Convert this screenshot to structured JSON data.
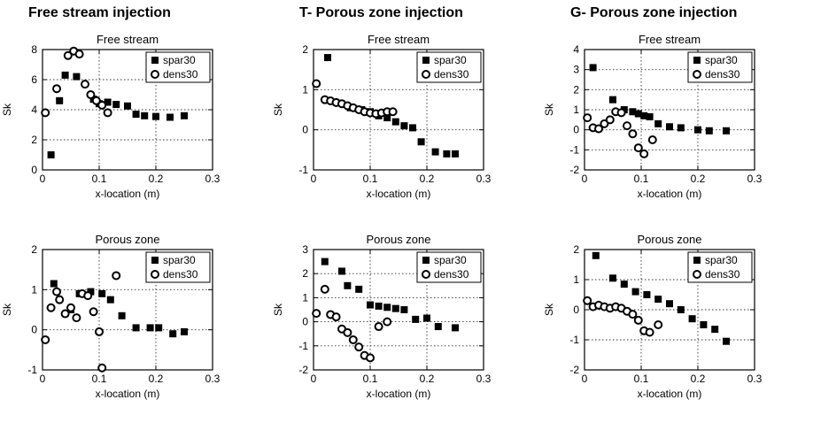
{
  "figure": {
    "columns": [
      {
        "title": "Free stream injection"
      },
      {
        "title": "T- Porous zone injection"
      },
      {
        "title": "G- Porous zone injection"
      }
    ]
  },
  "chart_data": [
    {
      "type": "scatter",
      "title": "Free stream",
      "xlabel": "x-location (m)",
      "ylabel": "Sk",
      "xlim": [
        0,
        0.3
      ],
      "xticks": [
        0,
        0.1,
        0.2,
        0.3
      ],
      "ylim": [
        0,
        8
      ],
      "yticks": [
        0,
        2,
        4,
        6,
        8
      ],
      "grid": true,
      "legend_position": "top-right",
      "legend": [
        "spar30",
        "dens30"
      ],
      "series": [
        {
          "name": "spar30",
          "marker": "filled-square",
          "points": [
            [
              0.015,
              1.0
            ],
            [
              0.03,
              4.6
            ],
            [
              0.04,
              6.3
            ],
            [
              0.06,
              6.2
            ],
            [
              0.09,
              4.7
            ],
            [
              0.1,
              4.4
            ],
            [
              0.115,
              4.5
            ],
            [
              0.13,
              4.35
            ],
            [
              0.15,
              4.25
            ],
            [
              0.165,
              3.7
            ],
            [
              0.18,
              3.6
            ],
            [
              0.2,
              3.55
            ],
            [
              0.225,
              3.5
            ],
            [
              0.25,
              3.6
            ]
          ]
        },
        {
          "name": "dens30",
          "marker": "open-circle",
          "points": [
            [
              0.005,
              3.8
            ],
            [
              0.025,
              5.4
            ],
            [
              0.045,
              7.6
            ],
            [
              0.055,
              7.9
            ],
            [
              0.065,
              7.7
            ],
            [
              0.075,
              5.7
            ],
            [
              0.085,
              5.0
            ],
            [
              0.095,
              4.6
            ],
            [
              0.105,
              4.3
            ],
            [
              0.115,
              3.8
            ]
          ]
        }
      ]
    },
    {
      "type": "scatter",
      "title": "Porous zone",
      "xlabel": "x-location (m)",
      "ylabel": "Sk",
      "xlim": [
        0,
        0.3
      ],
      "xticks": [
        0,
        0.1,
        0.2,
        0.3
      ],
      "ylim": [
        -1,
        2
      ],
      "yticks": [
        -1,
        0,
        1,
        2
      ],
      "grid": true,
      "legend_position": "top-right",
      "legend": [
        "spar30",
        "dens30"
      ],
      "series": [
        {
          "name": "spar30",
          "marker": "filled-square",
          "points": [
            [
              0.02,
              1.15
            ],
            [
              0.05,
              0.5
            ],
            [
              0.065,
              0.9
            ],
            [
              0.085,
              0.95
            ],
            [
              0.105,
              0.9
            ],
            [
              0.12,
              0.75
            ],
            [
              0.14,
              0.35
            ],
            [
              0.165,
              0.05
            ],
            [
              0.19,
              0.05
            ],
            [
              0.205,
              0.05
            ],
            [
              0.23,
              -0.1
            ],
            [
              0.25,
              -0.05
            ]
          ]
        },
        {
          "name": "dens30",
          "marker": "open-circle",
          "points": [
            [
              0.005,
              -0.25
            ],
            [
              0.015,
              0.55
            ],
            [
              0.025,
              0.95
            ],
            [
              0.03,
              0.75
            ],
            [
              0.04,
              0.4
            ],
            [
              0.05,
              0.55
            ],
            [
              0.06,
              0.3
            ],
            [
              0.07,
              0.9
            ],
            [
              0.08,
              0.85
            ],
            [
              0.09,
              0.45
            ],
            [
              0.1,
              -0.05
            ],
            [
              0.105,
              -0.95
            ],
            [
              0.13,
              1.35
            ]
          ]
        }
      ]
    },
    {
      "type": "scatter",
      "title": "Free stream",
      "xlabel": "x-location (m)",
      "ylabel": "Sk",
      "xlim": [
        0,
        0.3
      ],
      "xticks": [
        0,
        0.1,
        0.2,
        0.3
      ],
      "ylim": [
        -1,
        2
      ],
      "yticks": [
        -1,
        0,
        1,
        2
      ],
      "grid": true,
      "legend_position": "top-right",
      "legend": [
        "spar30",
        "dens30"
      ],
      "series": [
        {
          "name": "spar30",
          "marker": "filled-square",
          "points": [
            [
              0.025,
              1.8
            ],
            [
              0.065,
              0.55
            ],
            [
              0.085,
              0.5
            ],
            [
              0.1,
              0.45
            ],
            [
              0.115,
              0.35
            ],
            [
              0.13,
              0.3
            ],
            [
              0.145,
              0.2
            ],
            [
              0.16,
              0.1
            ],
            [
              0.175,
              0.05
            ],
            [
              0.19,
              -0.3
            ],
            [
              0.215,
              -0.55
            ],
            [
              0.235,
              -0.6
            ],
            [
              0.25,
              -0.6
            ]
          ]
        },
        {
          "name": "dens30",
          "marker": "open-circle",
          "points": [
            [
              0.005,
              1.15
            ],
            [
              0.02,
              0.75
            ],
            [
              0.03,
              0.72
            ],
            [
              0.04,
              0.68
            ],
            [
              0.05,
              0.65
            ],
            [
              0.06,
              0.6
            ],
            [
              0.07,
              0.55
            ],
            [
              0.08,
              0.5
            ],
            [
              0.09,
              0.45
            ],
            [
              0.1,
              0.42
            ],
            [
              0.11,
              0.4
            ],
            [
              0.12,
              0.42
            ],
            [
              0.13,
              0.45
            ],
            [
              0.14,
              0.45
            ]
          ]
        }
      ]
    },
    {
      "type": "scatter",
      "title": "Porous zone",
      "xlabel": "x-location (m)",
      "ylabel": "Sk",
      "xlim": [
        0,
        0.3
      ],
      "xticks": [
        0,
        0.1,
        0.2,
        0.3
      ],
      "ylim": [
        -2,
        3
      ],
      "yticks": [
        -2,
        -1,
        0,
        1,
        2,
        3
      ],
      "grid": true,
      "legend_position": "top-right",
      "legend": [
        "spar30",
        "dens30"
      ],
      "series": [
        {
          "name": "spar30",
          "marker": "filled-square",
          "points": [
            [
              0.02,
              2.5
            ],
            [
              0.05,
              2.1
            ],
            [
              0.06,
              1.5
            ],
            [
              0.08,
              1.35
            ],
            [
              0.1,
              0.7
            ],
            [
              0.115,
              0.65
            ],
            [
              0.13,
              0.6
            ],
            [
              0.145,
              0.55
            ],
            [
              0.16,
              0.5
            ],
            [
              0.18,
              0.1
            ],
            [
              0.2,
              0.15
            ],
            [
              0.22,
              -0.2
            ],
            [
              0.25,
              -0.25
            ]
          ]
        },
        {
          "name": "dens30",
          "marker": "open-circle",
          "points": [
            [
              0.005,
              0.35
            ],
            [
              0.02,
              1.35
            ],
            [
              0.03,
              0.3
            ],
            [
              0.04,
              0.2
            ],
            [
              0.05,
              -0.3
            ],
            [
              0.06,
              -0.45
            ],
            [
              0.07,
              -0.75
            ],
            [
              0.08,
              -1.05
            ],
            [
              0.09,
              -1.4
            ],
            [
              0.1,
              -1.5
            ],
            [
              0.115,
              -0.2
            ],
            [
              0.13,
              0.0
            ]
          ]
        }
      ]
    },
    {
      "type": "scatter",
      "title": "Free stream",
      "xlabel": "x-location (m)",
      "ylabel": "Sk",
      "xlim": [
        0,
        0.3
      ],
      "xticks": [
        0,
        0.1,
        0.2,
        0.3
      ],
      "ylim": [
        -2,
        4
      ],
      "yticks": [
        -2,
        -1,
        0,
        1,
        2,
        3,
        4
      ],
      "grid": true,
      "legend_position": "top-right",
      "legend": [
        "spar30",
        "dens30"
      ],
      "series": [
        {
          "name": "spar30",
          "marker": "filled-square",
          "points": [
            [
              0.015,
              3.1
            ],
            [
              0.05,
              1.5
            ],
            [
              0.07,
              1.0
            ],
            [
              0.085,
              0.9
            ],
            [
              0.095,
              0.8
            ],
            [
              0.105,
              0.7
            ],
            [
              0.115,
              0.65
            ],
            [
              0.13,
              0.3
            ],
            [
              0.15,
              0.15
            ],
            [
              0.17,
              0.1
            ],
            [
              0.2,
              0.0
            ],
            [
              0.22,
              -0.05
            ],
            [
              0.25,
              -0.05
            ]
          ]
        },
        {
          "name": "dens30",
          "marker": "open-circle",
          "points": [
            [
              0.005,
              0.6
            ],
            [
              0.015,
              0.1
            ],
            [
              0.025,
              0.05
            ],
            [
              0.035,
              0.3
            ],
            [
              0.045,
              0.5
            ],
            [
              0.055,
              0.9
            ],
            [
              0.065,
              0.85
            ],
            [
              0.075,
              0.2
            ],
            [
              0.085,
              -0.2
            ],
            [
              0.095,
              -0.9
            ],
            [
              0.105,
              -1.2
            ],
            [
              0.12,
              -0.5
            ]
          ]
        }
      ]
    },
    {
      "type": "scatter",
      "title": "Porous zone",
      "xlabel": "x-location (m)",
      "ylabel": "Sk",
      "xlim": [
        0,
        0.3
      ],
      "xticks": [
        0,
        0.1,
        0.2,
        0.3
      ],
      "ylim": [
        -2,
        2
      ],
      "yticks": [
        -2,
        -1,
        0,
        1,
        2
      ],
      "grid": true,
      "legend_position": "top-right",
      "legend": [
        "spar30",
        "dens30"
      ],
      "series": [
        {
          "name": "spar30",
          "marker": "filled-square",
          "points": [
            [
              0.02,
              1.8
            ],
            [
              0.05,
              1.05
            ],
            [
              0.07,
              0.85
            ],
            [
              0.09,
              0.6
            ],
            [
              0.11,
              0.5
            ],
            [
              0.13,
              0.35
            ],
            [
              0.15,
              0.2
            ],
            [
              0.17,
              0.0
            ],
            [
              0.19,
              -0.3
            ],
            [
              0.21,
              -0.5
            ],
            [
              0.23,
              -0.65
            ],
            [
              0.25,
              -1.05
            ]
          ]
        },
        {
          "name": "dens30",
          "marker": "open-circle",
          "points": [
            [
              0.005,
              0.3
            ],
            [
              0.015,
              0.1
            ],
            [
              0.025,
              0.15
            ],
            [
              0.035,
              0.1
            ],
            [
              0.045,
              0.05
            ],
            [
              0.055,
              0.1
            ],
            [
              0.065,
              0.05
            ],
            [
              0.075,
              -0.05
            ],
            [
              0.085,
              -0.15
            ],
            [
              0.095,
              -0.35
            ],
            [
              0.105,
              -0.7
            ],
            [
              0.115,
              -0.75
            ],
            [
              0.13,
              -0.5
            ]
          ]
        }
      ]
    }
  ]
}
